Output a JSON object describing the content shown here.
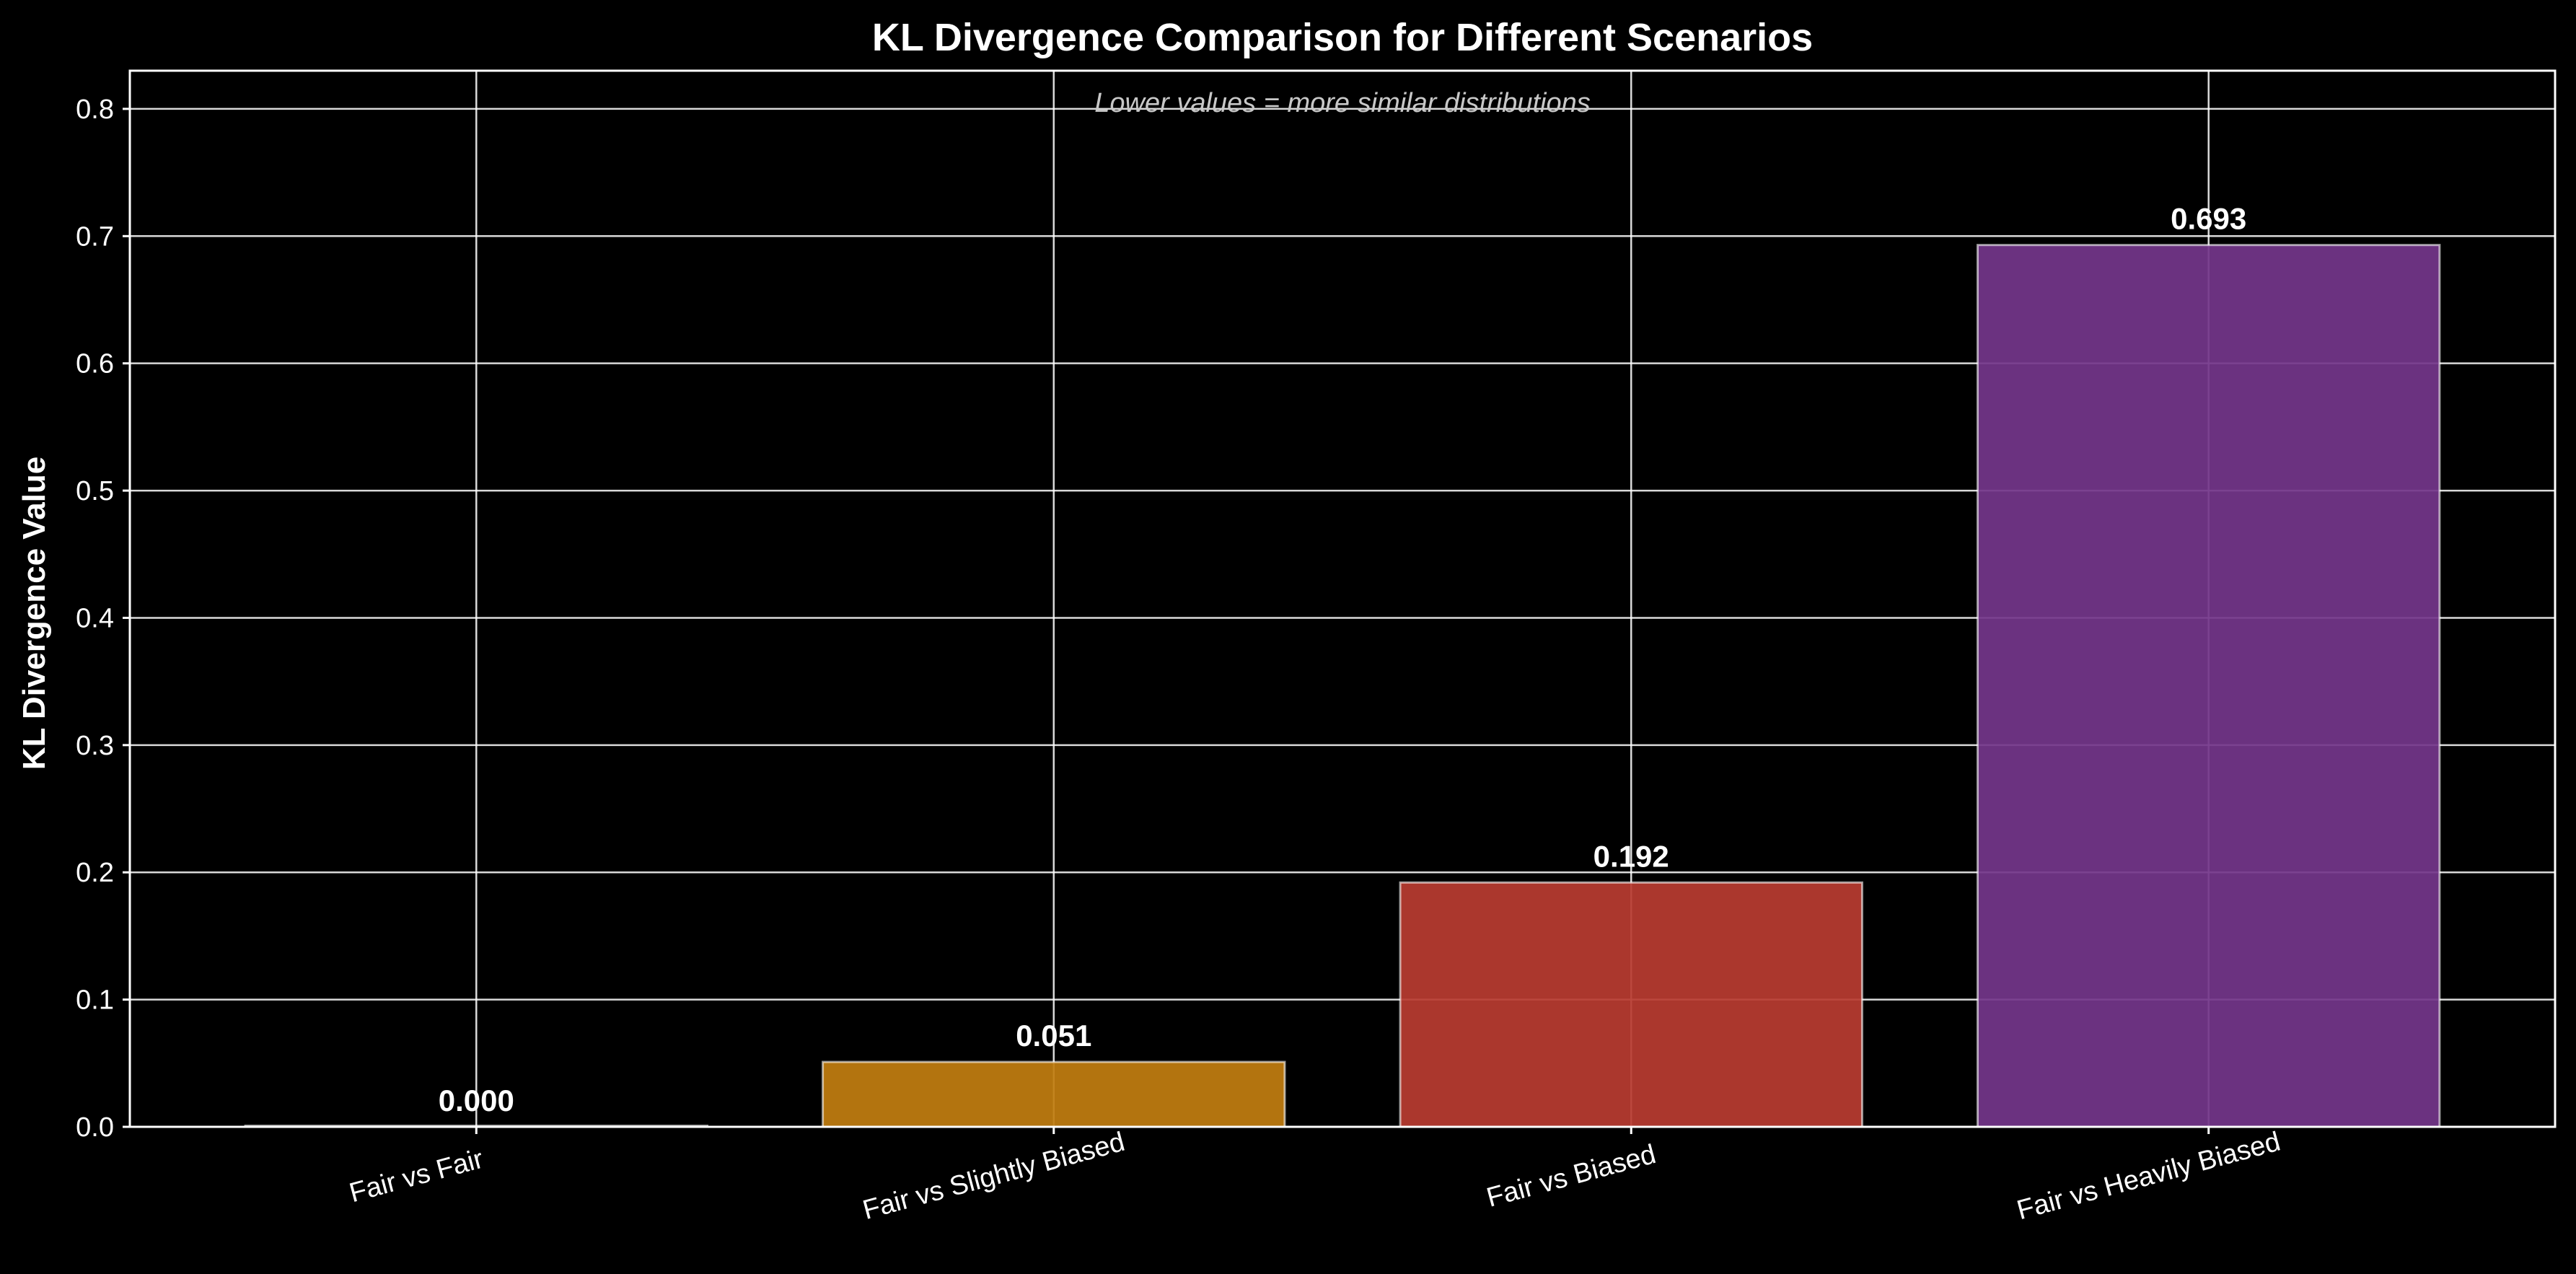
{
  "chart_data": {
    "type": "bar",
    "title": "KL Divergence Comparison for Different Scenarios",
    "ylabel": "KL Divergence Value",
    "xlabel": "",
    "annotation": "Lower values = more similar distributions",
    "categories": [
      "Fair vs Fair",
      "Fair vs Slightly Biased",
      "Fair vs Biased",
      "Fair vs Heavily Biased"
    ],
    "values": [
      0.0,
      0.051,
      0.192,
      0.693
    ],
    "value_labels": [
      "0.000",
      "0.051",
      "0.192",
      "0.693"
    ],
    "colors": [
      "#8a8a8a",
      "#c17d10",
      "#b83b30",
      "#73368a"
    ],
    "ylim": [
      0,
      0.83
    ],
    "yticks": [
      0.0,
      0.1,
      0.2,
      0.3,
      0.4,
      0.5,
      0.6,
      0.7,
      0.8
    ],
    "ytick_labels": [
      "0.0",
      "0.1",
      "0.2",
      "0.3",
      "0.4",
      "0.5",
      "0.6",
      "0.7",
      "0.8"
    ],
    "grid": true,
    "background": "#000000"
  }
}
